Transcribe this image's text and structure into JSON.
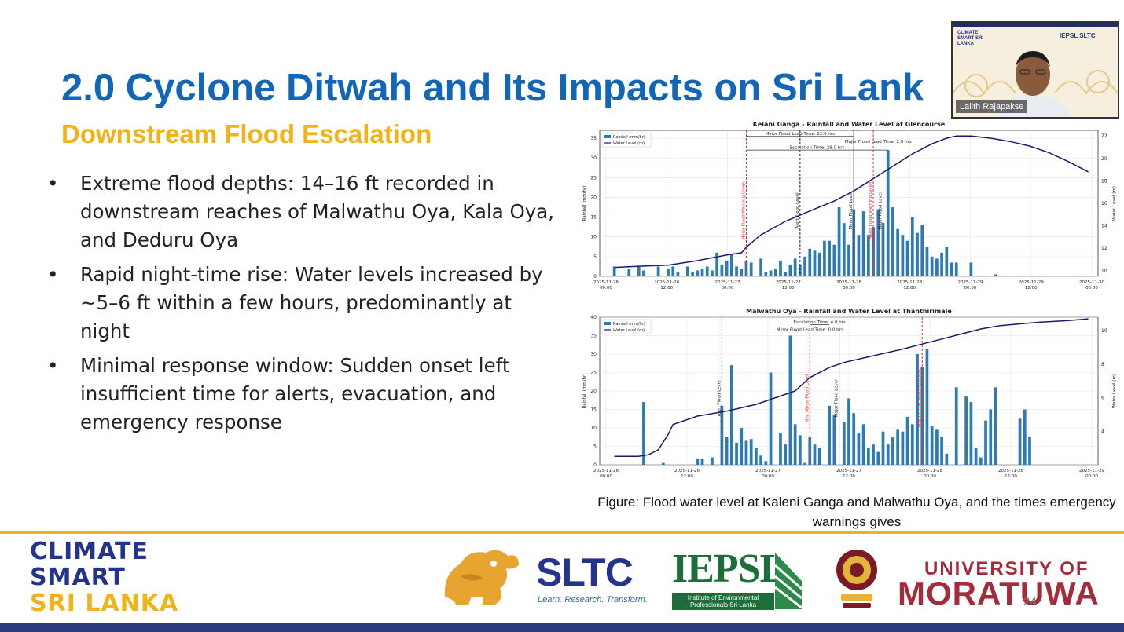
{
  "slide": {
    "title": "2.0 Cyclone Ditwah and Its Impacts on Sri Lank",
    "subtitle": "Downstream Flood Escalation",
    "bullets": [
      "Extreme flood depths: 14–16 ft recorded in downstream reaches of Malwathu Oya, Kala Oya, and Deduru Oya",
      "Rapid night-time rise: Water levels increased by ~5–6 ft within a few hours, predominantly at night",
      "Minimal response window: Sudden onset left insufficient time for alerts, evacuation, and emergency response"
    ],
    "bullet_symbol": "•",
    "caption": "Figure: Flood water level at Kaleni Ganga and Malwathu Oya, and the times emergency warnings gives",
    "page_number": "24"
  },
  "footer": {
    "logo_line1": "CLIMATE",
    "logo_line2": "SMART",
    "logo_line3": "SRI LANKA",
    "sltc": "SLTC",
    "sltc_tagline": "Learn. Research. Transform.",
    "iepsl": "IEPSL",
    "iepsl_sub": "Institute of Environmental Professionals Sri Lanka",
    "uom_line1": "UNIVERSITY OF",
    "uom_line2": "MORATUWA",
    "colors": {
      "navy": "#24338c",
      "gold": "#f2b318",
      "green": "#1e6e3c",
      "maroon": "#a52a3a"
    }
  },
  "webcam": {
    "name": "Lalith Rajapakse",
    "banner_text": "CLIMATE SMART SRI LANKA",
    "banner_logos": "IEPSL  SLTC"
  },
  "chart_data": [
    {
      "type": "bar+line",
      "title": "Kelani Ganga - Rainfall and Water Level at Glencourse",
      "legend": [
        "Rainfall (mm/hr)",
        "Water Level (m)"
      ],
      "ylabel_left": "Rainfall (mm/hr)",
      "ylabel_right": "Water Level (m)",
      "x_ticks": [
        "2025-11-26\n00:00",
        "2025-11-26\n12:00",
        "2025-11-27\n00:00",
        "2025-11-27\n12:00",
        "2025-11-28\n00:00",
        "2025-11-28\n12:00",
        "2025-11-29\n00:00",
        "2025-11-29\n12:00",
        "2025-11-30\n00:00"
      ],
      "x_range": [
        0,
        102
      ],
      "ylim_left": [
        0,
        37
      ],
      "ylim_right": [
        9.5,
        22.5
      ],
      "y_ticks_left": [
        0,
        5,
        10,
        15,
        20,
        25,
        30,
        35
      ],
      "y_ticks_right": [
        10,
        12,
        14,
        16,
        18,
        20,
        22
      ],
      "rainfall_x": [
        3,
        6,
        8,
        9,
        12,
        14,
        15,
        16,
        18,
        19,
        20,
        21,
        22,
        23,
        24,
        25,
        26,
        27,
        28,
        29,
        30,
        31,
        33,
        34,
        35,
        36,
        37,
        38,
        39,
        40,
        41,
        42,
        43,
        44,
        45,
        46,
        47,
        48,
        49,
        50,
        51,
        52,
        53,
        54,
        55,
        56,
        57,
        58,
        59,
        60,
        61,
        62,
        63,
        64,
        65,
        66,
        67,
        68,
        69,
        70,
        71,
        72,
        73,
        76,
        81
      ],
      "rainfall": [
        2.5,
        2,
        2.5,
        1.5,
        2.5,
        2,
        2.5,
        1,
        2.5,
        1,
        1.5,
        2,
        2.5,
        1.5,
        6,
        3,
        4,
        5.5,
        2.5,
        2,
        4,
        3.5,
        4.5,
        1,
        1.5,
        2,
        4,
        1,
        3,
        4.5,
        3,
        5,
        7,
        6.5,
        6,
        9,
        9,
        8,
        17.5,
        13.5,
        8,
        17,
        10.5,
        16.5,
        10.5,
        12.5,
        17,
        13.5,
        32,
        17.5,
        12,
        10.5,
        9,
        15,
        11,
        13,
        7.5,
        5,
        4.5,
        6,
        7.5,
        3.5,
        3.5,
        3.5,
        0.5
      ],
      "water_level_points": [
        [
          3,
          10.3
        ],
        [
          8,
          10.4
        ],
        [
          14,
          10.5
        ],
        [
          20,
          10.9
        ],
        [
          26,
          11.4
        ],
        [
          29,
          11.6
        ],
        [
          30,
          12.1
        ],
        [
          33,
          13.2
        ],
        [
          38,
          14.4
        ],
        [
          44,
          15.5
        ],
        [
          48,
          16.2
        ],
        [
          52,
          17.1
        ],
        [
          56,
          18.2
        ],
        [
          60,
          19.3
        ],
        [
          64,
          20.4
        ],
        [
          68,
          21.3
        ],
        [
          71,
          21.8
        ],
        [
          73,
          22
        ],
        [
          76,
          22
        ],
        [
          80,
          21.8
        ],
        [
          84,
          21.5
        ],
        [
          88,
          21.1
        ],
        [
          92,
          20.5
        ],
        [
          96,
          19.7
        ],
        [
          100,
          18.8
        ]
      ],
      "warnings": [
        {
          "x": 30,
          "label": "Minor Flood Warning Given",
          "color": "#d93030",
          "style": "dashed"
        },
        {
          "x": 41,
          "label": "Alert Flood Level",
          "color": "#222222",
          "style": "dashed"
        },
        {
          "x": 52,
          "label": "Minor Flood Level",
          "color": "#222222",
          "style": "solid"
        },
        {
          "x": 56,
          "label": "Major Flood Warning Given",
          "color": "#d93030",
          "style": "dashed"
        },
        {
          "x": 58,
          "label": "Major Flood Level",
          "color": "#222222",
          "style": "solid"
        }
      ],
      "annotations": [
        {
          "text": "Minor Flood Lead Time: 22.0 hrs",
          "from_x": 30,
          "to_x": 52,
          "y": 35.5
        },
        {
          "text": "Major Flood Lead Time: 2.0 hrs",
          "from_x": 56,
          "to_x": 58,
          "y": 33.5
        },
        {
          "text": "Escalation Time: 29.0 hrs",
          "from_x": 30,
          "to_x": 59,
          "y": 32
        }
      ]
    },
    {
      "type": "bar+line",
      "title": "Malwathu Oya - Rainfall and Water Level at Thanthirimale",
      "legend": [
        "Rainfall (mm/hr)",
        "Water Level (m)"
      ],
      "ylabel_left": "Rainfall (mm/hr)",
      "ylabel_right": "Water Level (m)",
      "x_ticks": [
        "2025-11-26\n00:00",
        "2025-11-26\n12:00",
        "2025-11-27\n00:00",
        "2025-11-27\n12:00",
        "2025-11-28\n00:00",
        "2025-11-28\n12:00",
        "2025-11-29\n00:00"
      ],
      "x_range": [
        0,
        102
      ],
      "ylim_left": [
        0,
        40
      ],
      "ylim_right": [
        2,
        10.8
      ],
      "y_ticks_left": [
        0,
        5,
        10,
        15,
        20,
        25,
        30,
        35,
        40
      ],
      "y_ticks_right": [
        4,
        6,
        8,
        10
      ],
      "rainfall_x": [
        9,
        13,
        20,
        21,
        23,
        25,
        26,
        27,
        28,
        29,
        30,
        31,
        32,
        33,
        34,
        35,
        37,
        38,
        39,
        40,
        41,
        42,
        43,
        44,
        45,
        47,
        48,
        50,
        51,
        52,
        53,
        54,
        55,
        56,
        57,
        58,
        59,
        60,
        61,
        62,
        63,
        64,
        65,
        66,
        67,
        68,
        69,
        70,
        71,
        73,
        75,
        76,
        77,
        78,
        79,
        80,
        81,
        86,
        87,
        88
      ],
      "rainfall": [
        17,
        0.5,
        1.5,
        1.5,
        2,
        16,
        7.5,
        27,
        6,
        10,
        6.5,
        7,
        4.5,
        2.5,
        1,
        25,
        8.5,
        5.5,
        35,
        11,
        8,
        0.5,
        7.5,
        5.5,
        4.5,
        16,
        13.5,
        11.5,
        18,
        14,
        8.5,
        11,
        4.5,
        5.5,
        3.5,
        9,
        5.5,
        7.5,
        9.5,
        9,
        13,
        11,
        30,
        26.5,
        31.5,
        10.5,
        9.5,
        7.5,
        3,
        21,
        18.5,
        17,
        4.5,
        2,
        12,
        15,
        21,
        12.5,
        15,
        7.5
      ],
      "water_level_points": [
        [
          3,
          2.5
        ],
        [
          8,
          2.5
        ],
        [
          10,
          2.6
        ],
        [
          12,
          2.9
        ],
        [
          14,
          3.8
        ],
        [
          15,
          4.4
        ],
        [
          20,
          4.9
        ],
        [
          26,
          5.2
        ],
        [
          32,
          5.6
        ],
        [
          36,
          6
        ],
        [
          40,
          6.4
        ],
        [
          43,
          7.2
        ],
        [
          47,
          7.8
        ],
        [
          50,
          8.1
        ],
        [
          56,
          8.5
        ],
        [
          62,
          8.9
        ],
        [
          66,
          9.2
        ],
        [
          70,
          9.5
        ],
        [
          74,
          9.8
        ],
        [
          78,
          10.1
        ],
        [
          82,
          10.3
        ],
        [
          86,
          10.4
        ],
        [
          90,
          10.5
        ],
        [
          96,
          10.6
        ],
        [
          100,
          10.7
        ]
      ],
      "warnings": [
        {
          "x": 25,
          "label": "Alert Flood Level",
          "color": "#222222",
          "style": "dashed"
        },
        {
          "x": 43,
          "label": "Min. Minor Flood Level",
          "color": "#d93030",
          "style": "dashed"
        },
        {
          "x": 49,
          "label": "Major Flood Level",
          "color": "#222222",
          "style": "solid"
        },
        {
          "x": 66,
          "label": "Major Flood Warning Given",
          "color": "#d93030",
          "style": "dashed"
        }
      ],
      "annotations": [
        {
          "text": "Escalation Time: 4.0 hrs",
          "from_x": 43,
          "to_x": 47,
          "y": 38
        },
        {
          "text": "Minor Flood Lead Time: 0.0 hrs",
          "from_x": 43,
          "to_x": 43,
          "y": 36
        }
      ]
    }
  ]
}
